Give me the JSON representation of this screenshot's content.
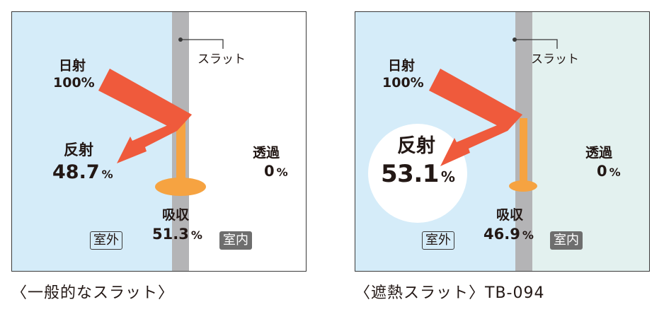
{
  "left": {
    "slat_label": "スラット",
    "solar": {
      "name": "日射",
      "value": "100%"
    },
    "reflect": {
      "name": "反射",
      "value": "48.7",
      "unit": "%"
    },
    "transmit": {
      "name": "透過",
      "value": "0",
      "unit": "%"
    },
    "absorb": {
      "name": "吸収",
      "value": "51.3",
      "unit": "%"
    },
    "room_outside": "室外",
    "room_inside": "室内",
    "caption": "〈一般的なスラット〉",
    "colors": {
      "outside": "#d5ecf9",
      "inside": "#ffffff",
      "arrow": "#ef5a3c",
      "absorb": "#f6a341"
    }
  },
  "right": {
    "slat_label": "スラット",
    "solar": {
      "name": "日射",
      "value": "100%"
    },
    "reflect": {
      "name": "反射",
      "value": "53.1",
      "unit": "%"
    },
    "transmit": {
      "name": "透過",
      "value": "0",
      "unit": "%"
    },
    "absorb": {
      "name": "吸収",
      "value": "46.9",
      "unit": "%"
    },
    "room_outside": "室外",
    "room_inside": "室内",
    "caption": "〈遮熱スラット〉TB-094",
    "colors": {
      "outside": "#d5ecf9",
      "inside": "#e3f1ef",
      "arrow": "#ef5a3c",
      "absorb": "#f6a341"
    }
  }
}
